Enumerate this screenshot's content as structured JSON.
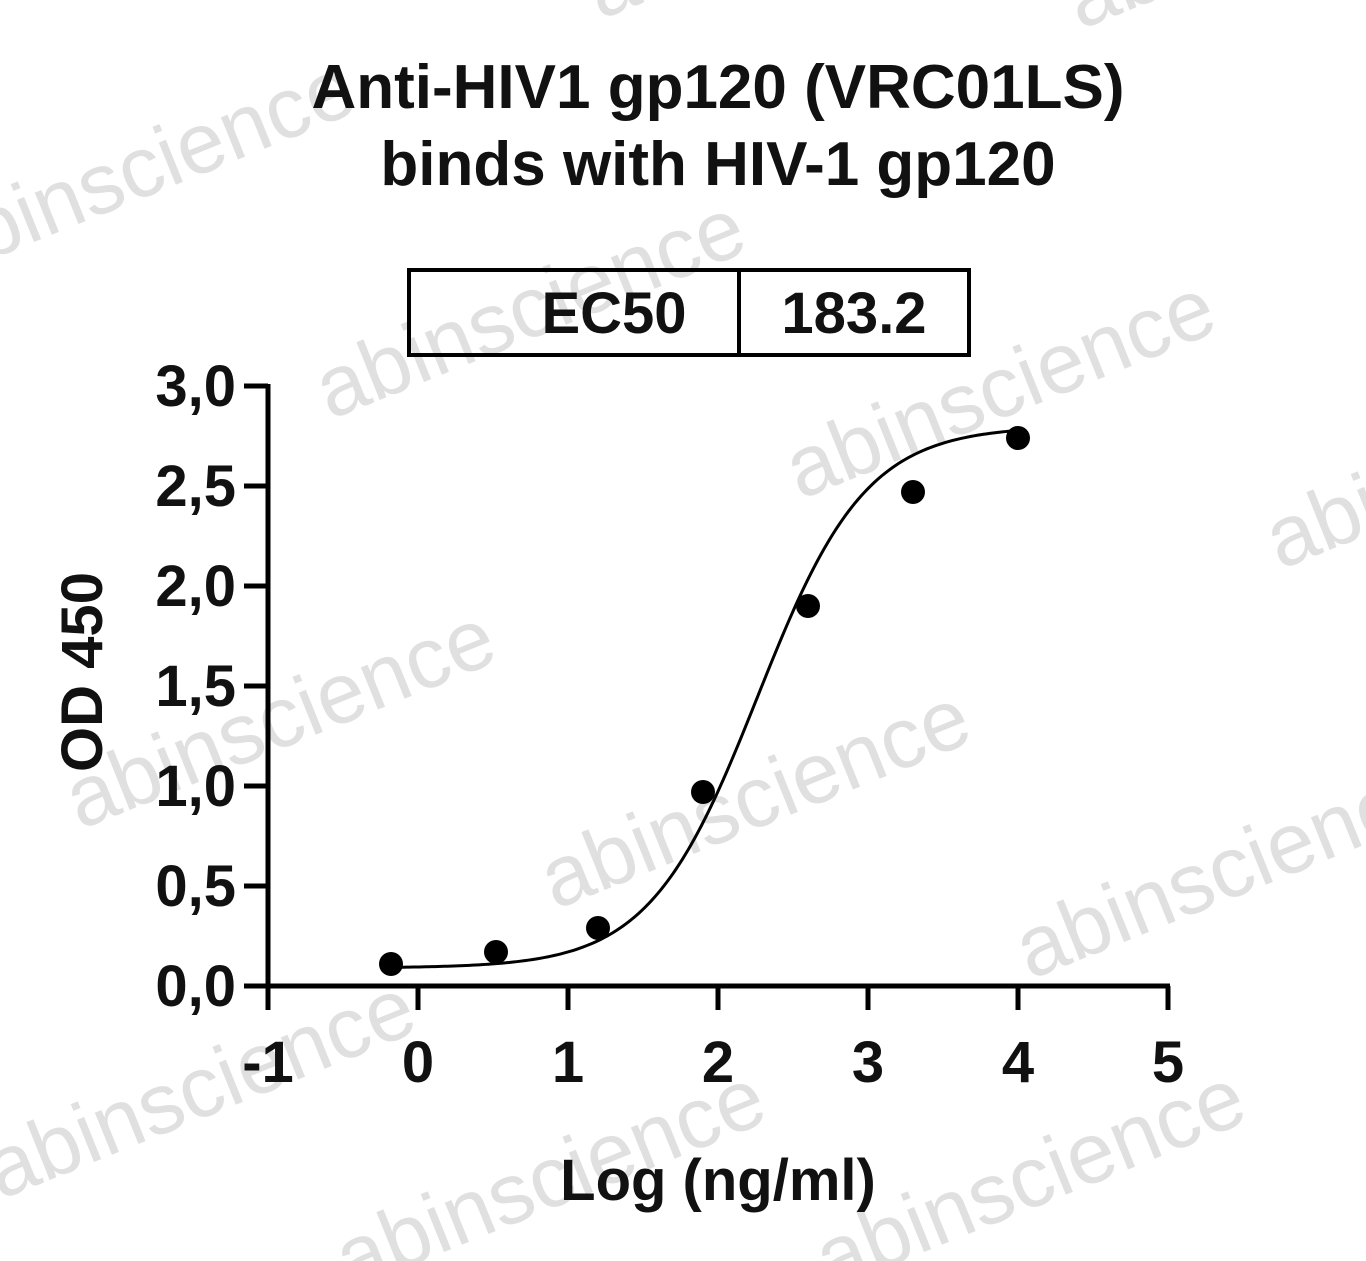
{
  "chart_data": {
    "type": "scatter",
    "title_lines": [
      "Anti-HIV1 gp120 (VRC01LS)",
      "binds with HIV-1 gp120"
    ],
    "xlabel": "Log (ng/ml)",
    "ylabel": "OD 450",
    "xlim": [
      -1,
      5
    ],
    "ylim": [
      0,
      3
    ],
    "x_ticks": [
      -1,
      0,
      1,
      2,
      3,
      4,
      5
    ],
    "x_tick_labels": [
      "-1",
      "0",
      "1",
      "2",
      "3",
      "4",
      "5"
    ],
    "y_ticks": [
      0,
      0.5,
      1,
      1.5,
      2,
      2.5,
      3
    ],
    "y_tick_labels": [
      "0,0",
      "0,5",
      "1,0",
      "1,5",
      "2,0",
      "2,5",
      "3,0"
    ],
    "grid": false,
    "series": [
      {
        "x": [
          -0.18,
          0.52,
          1.2,
          1.9,
          2.6,
          3.3,
          4.0
        ],
        "y": [
          0.11,
          0.17,
          0.29,
          0.97,
          1.9,
          2.47,
          2.74
        ],
        "color": "#000000",
        "marker": "circle",
        "fit": "four-parameter-logistic"
      }
    ],
    "fit_curve": {
      "bottom": 0.09,
      "top": 2.8,
      "log_ec50": 2.263,
      "hill": 1.2
    },
    "table": {
      "label": "EC50",
      "value": "183.2"
    }
  },
  "watermark": "abinscience"
}
